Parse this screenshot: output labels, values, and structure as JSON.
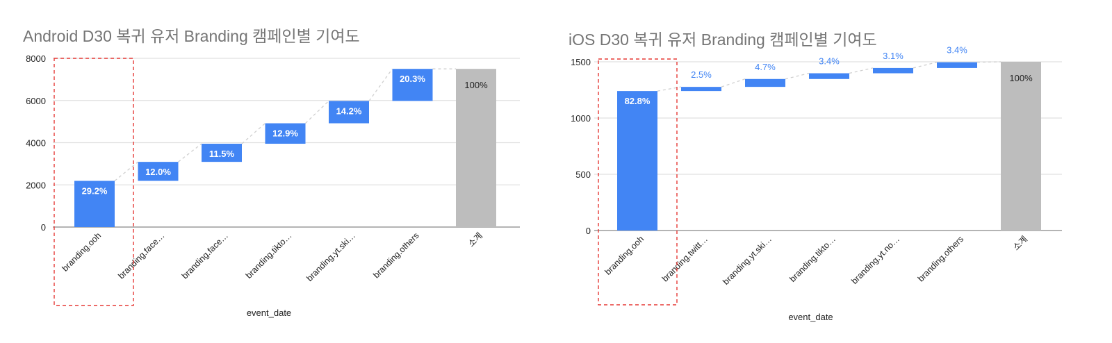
{
  "chart_data": [
    {
      "type": "waterfall",
      "title": "Android D30 복귀 유저 Branding 캠페인별 기여도",
      "xlabel": "event_date",
      "ylabel": "",
      "ylim": [
        0,
        8000
      ],
      "yticks": [
        0,
        2000,
        4000,
        6000,
        8000
      ],
      "grid": true,
      "colors": {
        "increase": "#4285f4",
        "total": "#bdbdbd",
        "highlight": "#e53935"
      },
      "highlight_category": "branding.ooh",
      "categories": [
        "branding.ooh",
        "branding.face…",
        "branding.face…",
        "branding.tikto…",
        "branding.yt.ski…",
        "branding.others",
        "소계"
      ],
      "values": [
        2190,
        900,
        860,
        970,
        1060,
        1520,
        7500
      ],
      "is_total": [
        false,
        false,
        false,
        false,
        false,
        false,
        true
      ],
      "labels": [
        "29.2%",
        "12.0%",
        "11.5%",
        "12.9%",
        "14.2%",
        "20.3%",
        "100%"
      ]
    },
    {
      "type": "waterfall",
      "title": "iOS D30 복귀 유저 Branding 캠페인별 기여도",
      "xlabel": "event_date",
      "ylabel": "",
      "ylim": [
        0,
        1500
      ],
      "yticks": [
        0,
        500,
        1000,
        1500
      ],
      "grid": true,
      "colors": {
        "increase": "#4285f4",
        "total": "#bdbdbd",
        "highlight": "#e53935"
      },
      "highlight_category": "branding.ooh",
      "categories": [
        "branding.ooh",
        "branding.twitt…",
        "branding.yt.ski…",
        "branding.tikto…",
        "branding.yt.no…",
        "branding.others",
        "소계"
      ],
      "values": [
        1240,
        37,
        70,
        51,
        47,
        51,
        1500
      ],
      "is_total": [
        false,
        false,
        false,
        false,
        false,
        false,
        true
      ],
      "labels": [
        "82.8%",
        "2.5%",
        "4.7%",
        "3.4%",
        "3.1%",
        "3.4%",
        "100%"
      ]
    }
  ]
}
